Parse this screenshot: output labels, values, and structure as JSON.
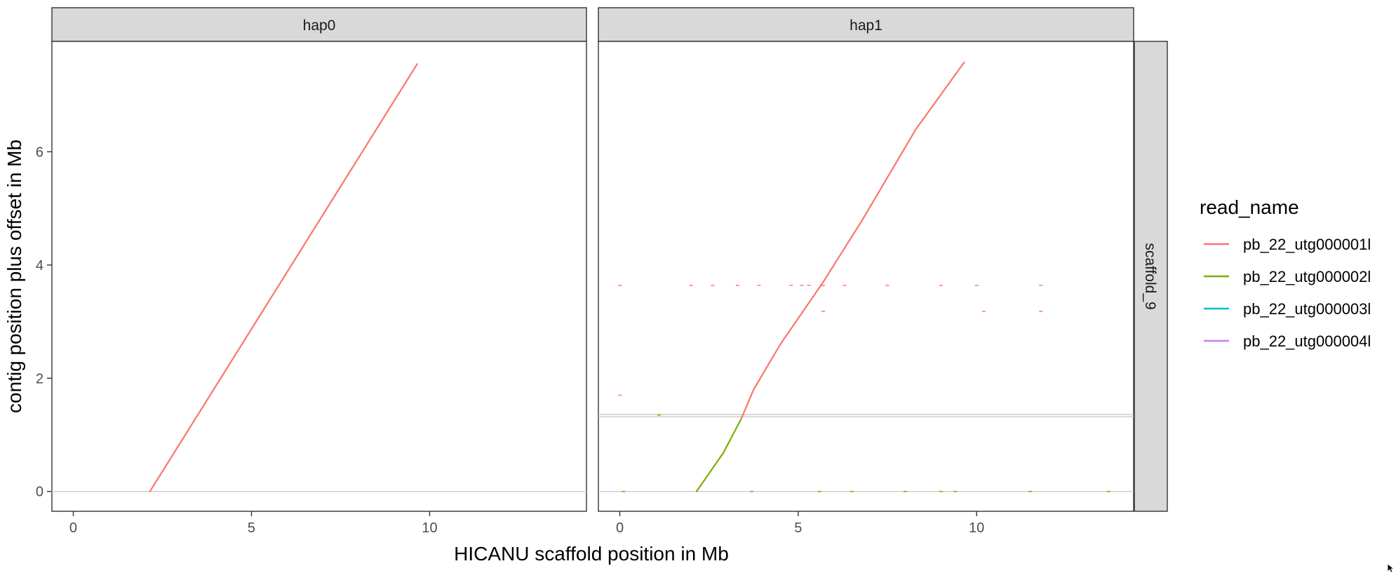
{
  "chart_data": {
    "type": "line",
    "facets": {
      "columns": [
        "hap0",
        "hap1"
      ],
      "rows": [
        "scaffold_9"
      ]
    },
    "xlabel": "HICANU scaffold position in Mb",
    "ylabel": "contig position plus offset in Mb",
    "xlim": [
      -0.6,
      14.4
    ],
    "ylim": [
      -0.35,
      7.95
    ],
    "xticks": [
      0,
      5,
      10
    ],
    "yticks": [
      0,
      2,
      4,
      6
    ],
    "grid": false,
    "legend": {
      "title": "read_name",
      "placement": "right",
      "entries": [
        {
          "name": "pb_22_utg000001l",
          "color": "#F8766D"
        },
        {
          "name": "pb_22_utg000002l",
          "color": "#7CAE00"
        },
        {
          "name": "pb_22_utg000003l",
          "color": "#00BFC4"
        },
        {
          "name": "pb_22_utg000004l",
          "color": "#C77CFF"
        }
      ]
    },
    "hlines": {
      "hap0": [
        0
      ],
      "hap1": [
        0,
        1.32,
        1.36
      ]
    },
    "series": [
      {
        "panel": "hap0",
        "name": "pb_22_utg000001l",
        "color": "#F8766D",
        "x": [
          2.15,
          9.65
        ],
        "y": [
          0.0,
          7.55
        ]
      },
      {
        "panel": "hap1",
        "name": "pb_22_utg000002l",
        "color": "#7CAE00",
        "x": [
          2.15,
          2.9,
          3.4
        ],
        "y": [
          0.0,
          0.68,
          1.28
        ]
      },
      {
        "panel": "hap1",
        "name": "pb_22_utg000001l",
        "color": "#F8766D",
        "x": [
          3.4,
          3.75,
          4.5,
          5.7,
          6.8,
          8.3,
          9.65
        ],
        "y": [
          1.28,
          1.8,
          2.6,
          3.7,
          4.8,
          6.4,
          7.58
        ]
      }
    ],
    "scatter": [
      {
        "panel": "hap1",
        "name": "pb_22_utg000001l",
        "color": "#F8766D",
        "x": [
          0.0,
          2.0,
          2.6,
          3.3,
          3.9,
          4.8,
          5.1,
          5.3,
          5.7,
          6.3,
          7.5,
          9.0,
          10.0,
          11.8,
          11.8,
          10.2,
          5.7,
          0.0
        ],
        "y": [
          3.64,
          3.64,
          3.64,
          3.64,
          3.64,
          3.64,
          3.64,
          3.64,
          3.64,
          3.64,
          3.64,
          3.64,
          3.64,
          3.64,
          3.18,
          3.18,
          3.18,
          1.7
        ]
      },
      {
        "panel": "hap1",
        "name": "pb_22_utg000002l",
        "color": "#7CAE00",
        "x": [
          0.1,
          1.1,
          3.7,
          5.6,
          6.5,
          8.0,
          9.0,
          9.4,
          11.5,
          13.7
        ],
        "y": [
          0.0,
          1.35,
          0.0,
          0.0,
          0.0,
          0.0,
          0.0,
          0.0,
          0.0,
          0.0
        ]
      }
    ]
  }
}
